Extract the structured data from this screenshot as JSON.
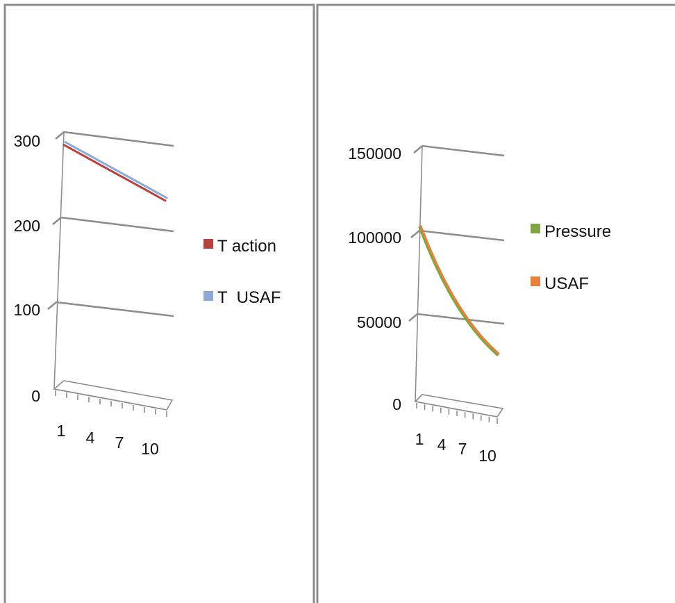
{
  "chart_data": [
    {
      "type": "line",
      "three_d": true,
      "title": "",
      "xlabel": "",
      "ylabel": "",
      "x": [
        1,
        2,
        3,
        4,
        5,
        6,
        7,
        8,
        9,
        10,
        11
      ],
      "x_tick_labels": [
        "1",
        "4",
        "7",
        "10"
      ],
      "y_tick_labels": [
        "0",
        "100",
        "200",
        "300"
      ],
      "ylim": [
        0,
        300
      ],
      "grid": true,
      "legend_position": "right",
      "series": [
        {
          "name": "T action",
          "color": "#b5423d",
          "values": [
            288.15,
            281.65,
            275.15,
            268.65,
            262.15,
            255.65,
            249.15,
            242.65,
            236.15,
            229.65,
            223.15
          ]
        },
        {
          "name": "T  USAF",
          "color": "#8fa8d8",
          "values": [
            288.15,
            281.65,
            275.15,
            268.65,
            262.15,
            255.65,
            249.15,
            242.65,
            236.15,
            229.65,
            223.15
          ]
        }
      ]
    },
    {
      "type": "line",
      "three_d": true,
      "title": "",
      "xlabel": "",
      "ylabel": "",
      "x": [
        1,
        2,
        3,
        4,
        5,
        6,
        7,
        8,
        9,
        10,
        11
      ],
      "x_tick_labels": [
        "1",
        "4",
        "7",
        "10"
      ],
      "y_tick_labels": [
        "0",
        "50000",
        "100000",
        "150000"
      ],
      "ylim": [
        0,
        150000
      ],
      "grid": true,
      "legend_position": "right",
      "series": [
        {
          "name": "Pressure",
          "color": "#7fa642",
          "values": [
            101325,
            89875,
            79495,
            70109,
            61640,
            54020,
            47181,
            41061,
            35600,
            30742,
            26436
          ]
        },
        {
          "name": "USAF",
          "color": "#e6803a",
          "values": [
            101325,
            89875,
            79495,
            70109,
            61640,
            54020,
            47181,
            41061,
            35600,
            30742,
            26436
          ]
        }
      ]
    }
  ]
}
